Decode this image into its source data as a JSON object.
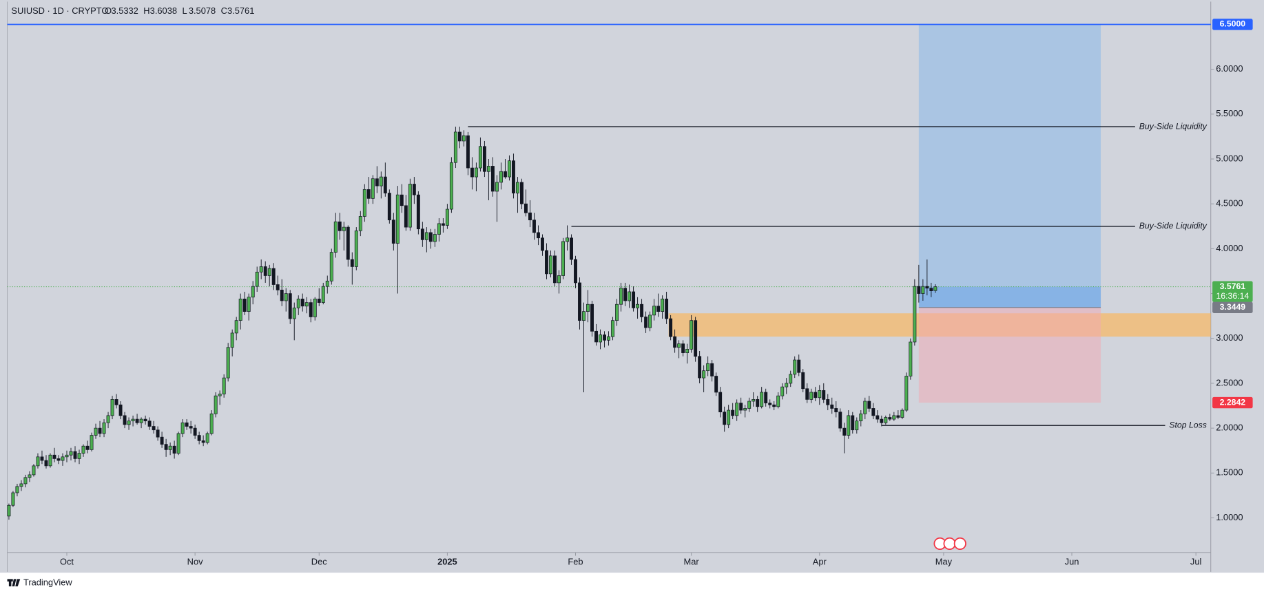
{
  "chart_data": {
    "type": "candlestick",
    "header": {
      "symbol": "SUIUSD · 1D · CRYPTO",
      "ohlc": [
        {
          "key": "O",
          "value": 3.5332
        },
        {
          "key": "H",
          "value": 3.6038
        },
        {
          "key": "L",
          "value": 3.5078
        },
        {
          "key": "C",
          "value": 3.5761
        }
      ]
    },
    "xlim": [
      -0.4,
      290.6
    ],
    "xticks": [
      {
        "value": 14,
        "label": "Oct"
      },
      {
        "value": 45,
        "label": "Nov"
      },
      {
        "value": 75,
        "label": "Dec"
      },
      {
        "value": 106,
        "label": "2025"
      },
      {
        "value": 137,
        "label": "Feb"
      },
      {
        "value": 165,
        "label": "Mar"
      },
      {
        "value": 196,
        "label": "Apr"
      },
      {
        "value": 226,
        "label": "May"
      },
      {
        "value": 257,
        "label": "Jun"
      },
      {
        "value": 287,
        "label": "Jul"
      }
    ],
    "ylim": [
      0.614,
      6.754
    ],
    "yticks": [
      {
        "value": 1,
        "label": "1.0000"
      },
      {
        "value": 1.5,
        "label": "1.5000"
      },
      {
        "value": 2,
        "label": "2.0000"
      },
      {
        "value": 2.5,
        "label": "2.5000"
      },
      {
        "value": 3,
        "label": "3.0000"
      },
      {
        "value": 3.5,
        "label": "3.5000"
      },
      {
        "value": 4,
        "label": "4.0000"
      },
      {
        "value": 4.5,
        "label": "4.5000"
      },
      {
        "value": 5,
        "label": "5.0000"
      },
      {
        "value": 5.5,
        "label": "5.5000"
      },
      {
        "value": 6,
        "label": "6.0000"
      }
    ],
    "up_color": "#4caf50",
    "down_color": "#131722",
    "candles": [
      [
        1.02,
        1.16,
        0.98,
        1.14
      ],
      [
        1.14,
        1.3,
        1.12,
        1.28
      ],
      [
        1.28,
        1.38,
        1.24,
        1.35
      ],
      [
        1.35,
        1.42,
        1.3,
        1.38
      ],
      [
        1.38,
        1.48,
        1.34,
        1.45
      ],
      [
        1.45,
        1.52,
        1.4,
        1.48
      ],
      [
        1.48,
        1.6,
        1.46,
        1.58
      ],
      [
        1.58,
        1.72,
        1.55,
        1.68
      ],
      [
        1.68,
        1.75,
        1.6,
        1.64
      ],
      [
        1.64,
        1.7,
        1.55,
        1.58
      ],
      [
        1.58,
        1.72,
        1.56,
        1.7
      ],
      [
        1.7,
        1.78,
        1.62,
        1.66
      ],
      [
        1.66,
        1.7,
        1.6,
        1.64
      ],
      [
        1.64,
        1.72,
        1.58,
        1.68
      ],
      [
        1.68,
        1.75,
        1.62,
        1.7
      ],
      [
        1.7,
        1.78,
        1.64,
        1.74
      ],
      [
        1.74,
        1.8,
        1.62,
        1.66
      ],
      [
        1.66,
        1.76,
        1.6,
        1.72
      ],
      [
        1.72,
        1.82,
        1.68,
        1.8
      ],
      [
        1.8,
        1.86,
        1.72,
        1.76
      ],
      [
        1.76,
        1.95,
        1.74,
        1.92
      ],
      [
        1.92,
        2.05,
        1.88,
        2.0
      ],
      [
        2.0,
        2.08,
        1.9,
        1.94
      ],
      [
        1.94,
        2.1,
        1.9,
        2.06
      ],
      [
        2.06,
        2.18,
        2.0,
        2.14
      ],
      [
        2.14,
        2.36,
        2.1,
        2.32
      ],
      [
        2.32,
        2.38,
        2.22,
        2.26
      ],
      [
        2.26,
        2.3,
        2.1,
        2.14
      ],
      [
        2.14,
        2.18,
        2.0,
        2.04
      ],
      [
        2.04,
        2.12,
        1.98,
        2.08
      ],
      [
        2.08,
        2.14,
        2.02,
        2.1
      ],
      [
        2.1,
        2.16,
        2.04,
        2.06
      ],
      [
        2.06,
        2.12,
        2.0,
        2.1
      ],
      [
        2.1,
        2.14,
        2.04,
        2.08
      ],
      [
        2.08,
        2.12,
        1.98,
        2.02
      ],
      [
        2.02,
        2.08,
        1.94,
        1.98
      ],
      [
        1.98,
        2.02,
        1.86,
        1.9
      ],
      [
        1.9,
        1.96,
        1.78,
        1.82
      ],
      [
        1.82,
        1.88,
        1.68,
        1.76
      ],
      [
        1.76,
        1.84,
        1.7,
        1.8
      ],
      [
        1.8,
        1.86,
        1.66,
        1.72
      ],
      [
        1.72,
        1.96,
        1.7,
        1.94
      ],
      [
        1.94,
        2.1,
        1.9,
        2.06
      ],
      [
        2.06,
        2.1,
        1.98,
        2.02
      ],
      [
        2.02,
        2.08,
        1.94,
        2.0
      ],
      [
        2.0,
        2.04,
        1.88,
        1.92
      ],
      [
        1.92,
        1.96,
        1.82,
        1.86
      ],
      [
        1.86,
        1.92,
        1.8,
        1.84
      ],
      [
        1.84,
        1.96,
        1.82,
        1.94
      ],
      [
        1.94,
        2.2,
        1.92,
        2.16
      ],
      [
        2.16,
        2.4,
        2.12,
        2.36
      ],
      [
        2.36,
        2.42,
        2.26,
        2.38
      ],
      [
        2.38,
        2.6,
        2.34,
        2.56
      ],
      [
        2.56,
        2.95,
        2.52,
        2.9
      ],
      [
        2.9,
        3.1,
        2.8,
        3.06
      ],
      [
        3.06,
        3.24,
        2.98,
        3.2
      ],
      [
        3.2,
        3.5,
        3.1,
        3.44
      ],
      [
        3.44,
        3.52,
        3.26,
        3.3
      ],
      [
        3.3,
        3.5,
        3.2,
        3.46
      ],
      [
        3.46,
        3.64,
        3.38,
        3.58
      ],
      [
        3.58,
        3.8,
        3.52,
        3.74
      ],
      [
        3.74,
        3.88,
        3.66,
        3.8
      ],
      [
        3.8,
        3.86,
        3.62,
        3.7
      ],
      [
        3.7,
        3.82,
        3.58,
        3.78
      ],
      [
        3.78,
        3.84,
        3.54,
        3.6
      ],
      [
        3.6,
        3.7,
        3.48,
        3.54
      ],
      [
        3.54,
        3.66,
        3.36,
        3.42
      ],
      [
        3.42,
        3.56,
        3.3,
        3.5
      ],
      [
        3.5,
        3.54,
        3.16,
        3.22
      ],
      [
        3.22,
        3.4,
        2.98,
        3.34
      ],
      [
        3.34,
        3.48,
        3.26,
        3.44
      ],
      [
        3.44,
        3.5,
        3.3,
        3.36
      ],
      [
        3.36,
        3.46,
        3.28,
        3.4
      ],
      [
        3.4,
        3.44,
        3.18,
        3.24
      ],
      [
        3.24,
        3.46,
        3.2,
        3.44
      ],
      [
        3.44,
        3.56,
        3.36,
        3.4
      ],
      [
        3.4,
        3.62,
        3.38,
        3.58
      ],
      [
        3.58,
        3.7,
        3.5,
        3.64
      ],
      [
        3.64,
        4.0,
        3.6,
        3.96
      ],
      [
        3.96,
        4.4,
        3.9,
        4.3
      ],
      [
        4.3,
        4.4,
        4.1,
        4.2
      ],
      [
        4.2,
        4.3,
        3.98,
        4.24
      ],
      [
        4.24,
        4.26,
        3.8,
        3.88
      ],
      [
        3.88,
        3.96,
        3.6,
        3.8
      ],
      [
        3.8,
        4.24,
        3.76,
        4.2
      ],
      [
        4.2,
        4.42,
        4.14,
        4.36
      ],
      [
        4.36,
        4.72,
        4.3,
        4.66
      ],
      [
        4.66,
        4.8,
        4.5,
        4.56
      ],
      [
        4.56,
        4.82,
        4.5,
        4.78
      ],
      [
        4.78,
        4.92,
        4.62,
        4.7
      ],
      [
        4.7,
        4.86,
        4.56,
        4.8
      ],
      [
        4.8,
        4.96,
        4.58,
        4.62
      ],
      [
        4.62,
        4.66,
        4.28,
        4.32
      ],
      [
        4.32,
        4.4,
        3.98,
        4.06
      ],
      [
        4.06,
        4.7,
        3.5,
        4.6
      ],
      [
        4.6,
        4.72,
        4.4,
        4.48
      ],
      [
        4.48,
        4.6,
        4.2,
        4.24
      ],
      [
        4.24,
        4.78,
        4.2,
        4.72
      ],
      [
        4.72,
        4.8,
        4.5,
        4.6
      ],
      [
        4.6,
        4.64,
        4.16,
        4.22
      ],
      [
        4.22,
        4.3,
        4.02,
        4.1
      ],
      [
        4.1,
        4.24,
        3.96,
        4.18
      ],
      [
        4.18,
        4.22,
        4.0,
        4.08
      ],
      [
        4.08,
        4.22,
        4.02,
        4.16
      ],
      [
        4.16,
        4.34,
        4.08,
        4.28
      ],
      [
        4.28,
        4.34,
        4.18,
        4.26
      ],
      [
        4.26,
        4.5,
        4.22,
        4.44
      ],
      [
        4.44,
        5.02,
        4.4,
        4.96
      ],
      [
        4.96,
        5.36,
        4.9,
        5.3
      ],
      [
        5.3,
        5.36,
        5.12,
        5.2
      ],
      [
        5.2,
        5.32,
        5.14,
        5.26
      ],
      [
        5.26,
        5.3,
        4.82,
        4.9
      ],
      [
        4.9,
        5.02,
        4.66,
        4.8
      ],
      [
        4.8,
        4.96,
        4.64,
        4.9
      ],
      [
        4.9,
        5.24,
        4.86,
        5.14
      ],
      [
        5.14,
        5.2,
        4.8,
        4.86
      ],
      [
        4.86,
        5.0,
        4.54,
        4.92
      ],
      [
        4.92,
        5.02,
        4.58,
        4.64
      ],
      [
        4.64,
        4.82,
        4.3,
        4.74
      ],
      [
        4.74,
        4.96,
        4.66,
        4.86
      ],
      [
        4.86,
        5.0,
        4.78,
        4.8
      ],
      [
        4.8,
        5.04,
        4.76,
        4.98
      ],
      [
        4.98,
        5.06,
        4.56,
        4.62
      ],
      [
        4.62,
        4.8,
        4.4,
        4.74
      ],
      [
        4.74,
        4.78,
        4.44,
        4.5
      ],
      [
        4.5,
        4.66,
        4.36,
        4.4
      ],
      [
        4.4,
        4.54,
        4.24,
        4.32
      ],
      [
        4.32,
        4.4,
        4.1,
        4.18
      ],
      [
        4.18,
        4.26,
        4.04,
        4.12
      ],
      [
        4.12,
        4.16,
        3.92,
        3.98
      ],
      [
        3.98,
        4.06,
        3.66,
        3.72
      ],
      [
        3.72,
        3.98,
        3.68,
        3.92
      ],
      [
        3.92,
        3.98,
        3.58,
        3.62
      ],
      [
        3.62,
        3.76,
        3.5,
        3.7
      ],
      [
        3.7,
        4.12,
        3.66,
        4.08
      ],
      [
        4.08,
        4.26,
        3.98,
        4.12
      ],
      [
        4.12,
        4.16,
        3.82,
        3.88
      ],
      [
        3.88,
        3.92,
        3.56,
        3.62
      ],
      [
        3.62,
        3.68,
        3.1,
        3.2
      ],
      [
        3.2,
        3.4,
        2.4,
        3.3
      ],
      [
        3.3,
        3.54,
        3.18,
        3.38
      ],
      [
        3.38,
        3.42,
        3.02,
        3.08
      ],
      [
        3.08,
        3.16,
        2.92,
        2.96
      ],
      [
        2.96,
        3.1,
        2.88,
        3.04
      ],
      [
        3.04,
        3.08,
        2.9,
        2.98
      ],
      [
        2.98,
        3.08,
        2.92,
        3.02
      ],
      [
        3.02,
        3.24,
        2.98,
        3.2
      ],
      [
        3.2,
        3.44,
        3.14,
        3.38
      ],
      [
        3.38,
        3.62,
        3.3,
        3.56
      ],
      [
        3.56,
        3.62,
        3.36,
        3.42
      ],
      [
        3.42,
        3.6,
        3.34,
        3.52
      ],
      [
        3.52,
        3.58,
        3.3,
        3.34
      ],
      [
        3.34,
        3.46,
        3.22,
        3.38
      ],
      [
        3.38,
        3.44,
        3.18,
        3.24
      ],
      [
        3.24,
        3.3,
        3.06,
        3.12
      ],
      [
        3.12,
        3.3,
        3.08,
        3.26
      ],
      [
        3.26,
        3.44,
        3.2,
        3.36
      ],
      [
        3.36,
        3.5,
        3.24,
        3.3
      ],
      [
        3.3,
        3.48,
        3.22,
        3.44
      ],
      [
        3.44,
        3.52,
        3.16,
        3.22
      ],
      [
        3.22,
        3.26,
        2.98,
        3.02
      ],
      [
        3.02,
        3.1,
        2.84,
        2.9
      ],
      [
        2.9,
        2.98,
        2.78,
        2.94
      ],
      [
        2.94,
        2.98,
        2.8,
        2.84
      ],
      [
        2.84,
        2.94,
        2.72,
        2.88
      ],
      [
        2.88,
        3.26,
        2.84,
        3.2
      ],
      [
        3.2,
        3.24,
        2.74,
        2.8
      ],
      [
        2.8,
        2.86,
        2.5,
        2.56
      ],
      [
        2.56,
        2.7,
        2.4,
        2.64
      ],
      [
        2.64,
        2.8,
        2.58,
        2.72
      ],
      [
        2.72,
        2.76,
        2.52,
        2.58
      ],
      [
        2.58,
        2.62,
        2.36,
        2.4
      ],
      [
        2.4,
        2.46,
        2.12,
        2.18
      ],
      [
        2.18,
        2.24,
        1.96,
        2.04
      ],
      [
        2.04,
        2.26,
        2.0,
        2.2
      ],
      [
        2.2,
        2.28,
        2.1,
        2.14
      ],
      [
        2.14,
        2.32,
        2.08,
        2.28
      ],
      [
        2.28,
        2.34,
        2.16,
        2.2
      ],
      [
        2.2,
        2.26,
        2.12,
        2.22
      ],
      [
        2.22,
        2.34,
        2.18,
        2.3
      ],
      [
        2.3,
        2.4,
        2.24,
        2.32
      ],
      [
        2.32,
        2.36,
        2.18,
        2.24
      ],
      [
        2.24,
        2.46,
        2.22,
        2.4
      ],
      [
        2.4,
        2.44,
        2.24,
        2.28
      ],
      [
        2.28,
        2.32,
        2.22,
        2.26
      ],
      [
        2.26,
        2.3,
        2.2,
        2.24
      ],
      [
        2.24,
        2.4,
        2.22,
        2.36
      ],
      [
        2.36,
        2.5,
        2.32,
        2.46
      ],
      [
        2.46,
        2.56,
        2.38,
        2.5
      ],
      [
        2.5,
        2.64,
        2.46,
        2.6
      ],
      [
        2.6,
        2.8,
        2.56,
        2.76
      ],
      [
        2.76,
        2.82,
        2.58,
        2.62
      ],
      [
        2.62,
        2.66,
        2.4,
        2.44
      ],
      [
        2.44,
        2.5,
        2.28,
        2.32
      ],
      [
        2.32,
        2.44,
        2.28,
        2.4
      ],
      [
        2.4,
        2.46,
        2.3,
        2.34
      ],
      [
        2.34,
        2.48,
        2.26,
        2.42
      ],
      [
        2.42,
        2.5,
        2.28,
        2.32
      ],
      [
        2.32,
        2.38,
        2.2,
        2.26
      ],
      [
        2.26,
        2.34,
        2.16,
        2.22
      ],
      [
        2.22,
        2.3,
        2.12,
        2.18
      ],
      [
        2.18,
        2.22,
        1.96,
        2.0
      ],
      [
        2.0,
        2.06,
        1.72,
        1.92
      ],
      [
        1.92,
        2.2,
        1.88,
        2.14
      ],
      [
        2.14,
        2.18,
        1.94,
        1.98
      ],
      [
        1.98,
        2.12,
        1.94,
        2.08
      ],
      [
        2.08,
        2.2,
        2.02,
        2.16
      ],
      [
        2.16,
        2.34,
        2.1,
        2.3
      ],
      [
        2.3,
        2.36,
        2.18,
        2.22
      ],
      [
        2.22,
        2.28,
        2.1,
        2.14
      ],
      [
        2.14,
        2.2,
        2.06,
        2.1
      ],
      [
        2.1,
        2.14,
        2.02,
        2.06
      ],
      [
        2.06,
        2.14,
        2.04,
        2.12
      ],
      [
        2.12,
        2.16,
        2.08,
        2.1
      ],
      [
        2.1,
        2.18,
        2.08,
        2.14
      ],
      [
        2.14,
        2.2,
        2.1,
        2.12
      ],
      [
        2.12,
        2.22,
        2.1,
        2.2
      ],
      [
        2.2,
        2.62,
        2.18,
        2.58
      ],
      [
        2.58,
        3.0,
        2.54,
        2.96
      ],
      [
        2.96,
        3.66,
        2.92,
        3.58
      ],
      [
        3.58,
        3.82,
        3.4,
        3.5
      ],
      [
        3.5,
        3.66,
        3.42,
        3.58
      ],
      [
        3.58,
        3.88,
        3.48,
        3.56
      ],
      [
        3.56,
        3.62,
        3.46,
        3.53
      ],
      [
        3.5332,
        3.6038,
        3.5078,
        3.5761
      ]
    ],
    "levels": [
      {
        "value": 6.5,
        "color": "#2962ff"
      }
    ],
    "zone": {
      "low": 3.02,
      "high": 3.28,
      "start": 159.5,
      "color": "#f5b96a"
    },
    "position": {
      "start": 220,
      "end": 264,
      "entry": 3.3449,
      "target": 6.5,
      "stop": 2.2842,
      "current": 3.5761
    },
    "annotations": [
      {
        "text": "Buy-Side Liquidity",
        "value": 5.36,
        "start": 111
      },
      {
        "text": "Buy-Side Liquidity",
        "value": 4.25,
        "start": 136
      },
      {
        "text": "Stop Loss",
        "value": 2.03,
        "start": 211
      }
    ],
    "price_labels": [
      {
        "value": 6.5,
        "label": "6.5000",
        "color": "#2962ff"
      },
      {
        "value": 3.5761,
        "label": "3.5761",
        "color": "#4caf50",
        "countdown": "16:36:14"
      },
      {
        "value": 3.3449,
        "label": "3.3449",
        "color": "#787b86"
      },
      {
        "value": 2.2842,
        "label": "2.2842",
        "color": "#f23645"
      }
    ],
    "brand": "TradingView"
  }
}
